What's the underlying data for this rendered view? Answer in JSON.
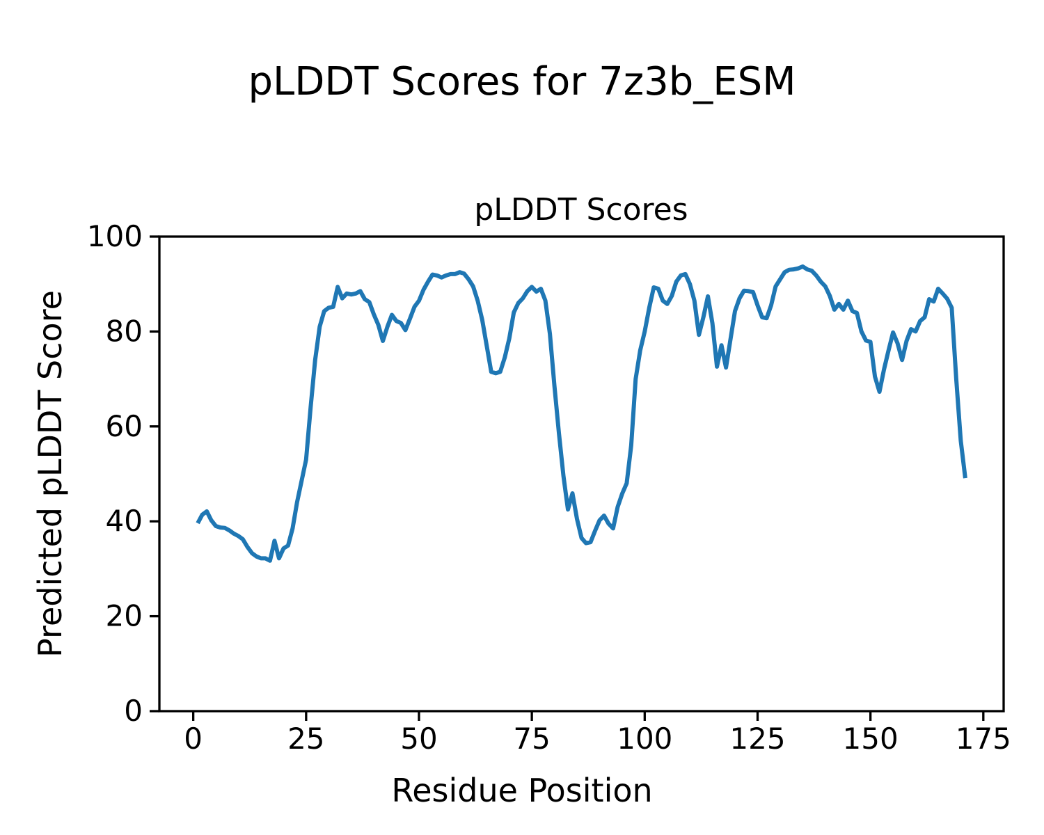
{
  "figure": {
    "suptitle": "pLDDT Scores for 7z3b_ESM"
  },
  "chart_data": {
    "type": "line",
    "title": "pLDDT Scores",
    "xlabel": "Residue Position",
    "ylabel": "Predicted pLDDT Score",
    "xlim": [
      -7.5,
      179.5
    ],
    "ylim": [
      0,
      100
    ],
    "xticks": [
      0,
      25,
      50,
      75,
      100,
      125,
      150,
      175
    ],
    "yticks": [
      0,
      20,
      40,
      60,
      80,
      100
    ],
    "grid": false,
    "legend_position": "none",
    "line_color": "#1f77b4",
    "series": [
      {
        "name": "pLDDT",
        "x_start": 1,
        "values": [
          39.6,
          41.4,
          42.1,
          40.2,
          39.0,
          38.7,
          38.6,
          38.1,
          37.4,
          36.9,
          36.2,
          34.6,
          33.3,
          32.6,
          32.2,
          32.2,
          31.7,
          35.9,
          32.2,
          34.3,
          34.9,
          38.5,
          44.0,
          48.5,
          53.0,
          64.0,
          74.0,
          81.0,
          84.3,
          85.0,
          85.2,
          89.4,
          87.0,
          88.0,
          87.8,
          88.0,
          88.5,
          86.8,
          86.2,
          83.6,
          81.4,
          78.0,
          81.0,
          83.5,
          82.2,
          81.8,
          80.3,
          82.7,
          85.2,
          86.5,
          88.8,
          90.5,
          92.0,
          91.8,
          91.4,
          91.8,
          92.1,
          92.1,
          92.5,
          92.2,
          91.0,
          89.5,
          86.5,
          82.5,
          77.0,
          71.5,
          71.2,
          71.5,
          74.5,
          78.5,
          84.0,
          86.0,
          87.0,
          88.5,
          89.4,
          88.4,
          89.0,
          86.5,
          79.5,
          68.5,
          58.5,
          49.5,
          42.5,
          45.9,
          40.5,
          36.5,
          35.4,
          35.6,
          38.0,
          40.2,
          41.2,
          39.5,
          38.5,
          43.0,
          45.8,
          48.0,
          56.0,
          70.0,
          76.0,
          80.0,
          85.0,
          89.3,
          89.0,
          86.5,
          85.8,
          87.5,
          90.5,
          91.8,
          92.1,
          90.0,
          86.5,
          79.3,
          83.0,
          87.4,
          81.7,
          72.6,
          77.1,
          72.4,
          78.4,
          84.3,
          87.0,
          88.6,
          88.5,
          88.3,
          85.5,
          83.0,
          82.8,
          85.5,
          89.5,
          91.0,
          92.5,
          93.0,
          93.1,
          93.3,
          93.7,
          93.1,
          92.8,
          91.8,
          90.5,
          89.5,
          87.5,
          84.6,
          85.8,
          84.6,
          86.5,
          84.3,
          83.9,
          80.0,
          78.1,
          77.8,
          70.5,
          67.3,
          72.0,
          76.0,
          79.8,
          77.5,
          74.0,
          78.0,
          80.5,
          80.0,
          82.2,
          83.0,
          86.8,
          86.3,
          89.0,
          88.0,
          86.9,
          85.0,
          70.0,
          57.0,
          49.1
        ]
      }
    ]
  }
}
